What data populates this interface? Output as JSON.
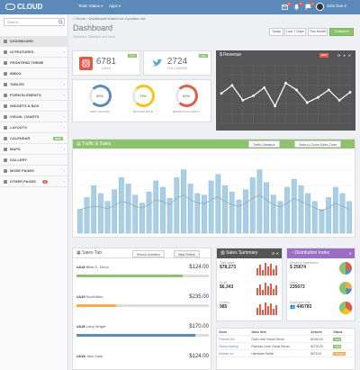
{
  "app": {
    "logo": "CLOUD"
  },
  "topbar": {
    "menu_status": "Team Status ▾",
    "menu_apps": "Apps ▾",
    "badge_mail": "2",
    "badge_bell": "3",
    "badge_tasks": "1",
    "user": "John Doe ▾"
  },
  "sidebar": {
    "search_placeholder": "Search",
    "items": [
      {
        "label": "DASHBOARD"
      },
      {
        "label": "UI FEATURES"
      },
      {
        "label": "FRONTEND THEME"
      },
      {
        "label": "INBOX"
      },
      {
        "label": "TABLES"
      },
      {
        "label": "FORM ELEMENTS"
      },
      {
        "label": "WIDGETS & BOX"
      },
      {
        "label": "VISUAL CHARTS"
      },
      {
        "label": "LAYOUTS"
      },
      {
        "label": "CALENDAR",
        "badge": "NEW"
      },
      {
        "label": "MAPS"
      },
      {
        "label": "GALLERY"
      },
      {
        "label": "MORE PAGES"
      },
      {
        "label": "OTHER PAGES",
        "badge": "4"
      }
    ]
  },
  "breadcrumb": {
    "home": "Home",
    "sep": " › ",
    "current": "Dashboard",
    "extra": " shared on mycodes.net"
  },
  "page": {
    "title": "Dashboard",
    "subtitle": "Overview, Statistics and more"
  },
  "date_buttons": {
    "today": "Today",
    "last7": "Last 7 Days",
    "month": "This Month",
    "custom": "Custom ▾"
  },
  "stats": {
    "likes": {
      "value": "6781",
      "label": "LIKES",
      "ribbon": "25%"
    },
    "followers": {
      "value": "2724",
      "label": "FOLLOWERS",
      "ribbon": "29%"
    }
  },
  "rings": [
    {
      "value": "59%",
      "label": "NEW VISITORS",
      "color": "#5b8ab8"
    },
    {
      "value": "73%",
      "label": "BOUNCE RATE",
      "color": "#f0c419"
    },
    {
      "value": "60%",
      "label": "BRAND POPULARITY",
      "color": "#e05b4b"
    }
  ],
  "revenue": {
    "title": "Revenue",
    "badge": "NEW"
  },
  "traffic": {
    "title": "Traffic & Sales",
    "tab1": "Traffic Statistics",
    "tab2": "Select & Zoom Sales Chart"
  },
  "sales_tab": {
    "title": "Sales Tab",
    "tab1": "Recent Activities",
    "tab2": "New Orders",
    "orders": [
      {
        "id": "#A18",
        "name": "Billie G. Dixon",
        "amount": "$124.00",
        "color": "#8dc26f",
        "progress": 0.8
      },
      {
        "id": "#A19",
        "name": "Scott Allen",
        "amount": "$235.00",
        "color": "#f0ad4e",
        "progress": 0.3
      },
      {
        "id": "#A18",
        "name": "Larry Wright",
        "amount": "$170.00",
        "color": "#5b8ab8",
        "progress": 0.9
      },
      {
        "id": "#A18",
        "name": "John Gale",
        "amount": "$124.00",
        "color": "#8dc26f",
        "progress": 0.4
      }
    ]
  },
  "sales_summary": {
    "title": "Sales Summary",
    "rows": [
      {
        "label": "Total sales",
        "value": "$78,273"
      },
      {
        "label": "Profit",
        "value": "$6,343"
      },
      {
        "label": "Orders",
        "value": "985"
      }
    ]
  },
  "distribution": {
    "title": "Distribution Index",
    "rows": [
      {
        "label": "Revenue distribution",
        "value": "25674"
      },
      {
        "label": "Sales",
        "value": "235673"
      },
      {
        "label": "Employee Dist.",
        "value": "445783"
      }
    ]
  },
  "clients": {
    "headers": [
      "Client",
      "Sales Item",
      "Amount",
      "Status"
    ],
    "rows": [
      {
        "client": "Fortune 500",
        "item": "Gold Level Virtual Server",
        "amount": "$2400.00",
        "status": "Paid"
      },
      {
        "client": "Global Hosting",
        "item": "Platinum Level Virtual Server",
        "amount": "$2700.00",
        "status": "Paid"
      },
      {
        "client": "Holiday Inn",
        "item": "Hardware Switch",
        "amount": "$475.00",
        "status": "Pending"
      }
    ]
  },
  "chart_data": [
    {
      "type": "line",
      "title": "Revenue",
      "y": [
        52,
        66,
        40,
        48,
        62,
        30,
        70,
        58,
        36,
        45,
        58,
        40,
        54
      ],
      "ylim": [
        0,
        100
      ]
    },
    {
      "type": "bar",
      "title": "Traffic & Sales",
      "values": [
        30,
        45,
        60,
        50,
        40,
        55,
        70,
        62,
        48,
        38,
        52,
        66,
        58,
        44,
        70,
        80,
        62,
        50,
        48,
        66,
        74,
        60,
        52,
        42,
        55,
        70,
        80,
        64,
        48,
        40,
        58,
        68,
        60,
        50,
        40,
        30,
        45,
        58,
        50,
        40
      ],
      "line": [
        30,
        32,
        34,
        33,
        31,
        35,
        40,
        38,
        34,
        32,
        36,
        42,
        40,
        36,
        44,
        48,
        42,
        38,
        37,
        42,
        46,
        40,
        36,
        34,
        38,
        44,
        48,
        42,
        36,
        33,
        38,
        44,
        40,
        36,
        32,
        28,
        32,
        38,
        34,
        30
      ],
      "ylim": [
        0,
        100
      ]
    }
  ]
}
